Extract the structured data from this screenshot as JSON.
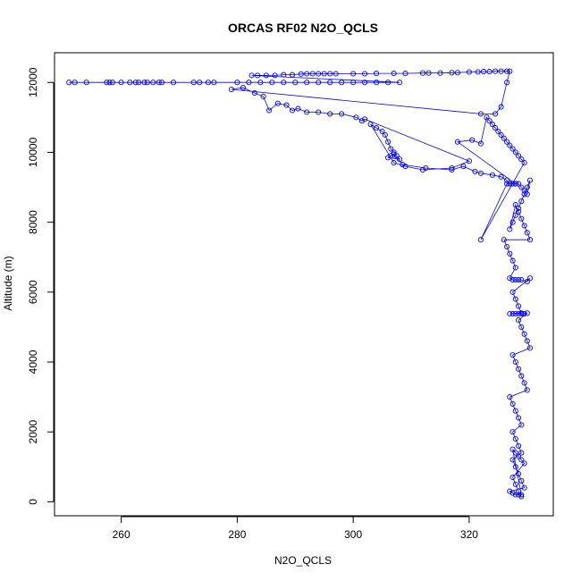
{
  "chart_data": {
    "type": "scatter",
    "title": "ORCAS RF02 N2O_QCLS",
    "xlabel": "N2O_QCLS",
    "ylabel": "Altitude (m)",
    "xlim": [
      248.5,
      334.5
    ],
    "ylim": [
      -400,
      12850
    ],
    "xticks": [
      260,
      280,
      300,
      320
    ],
    "yticks": [
      0,
      2000,
      4000,
      6000,
      8000,
      10000,
      12000
    ],
    "grid": false,
    "legend": "none",
    "colors": {
      "series": "#0000ff",
      "axis": "#000000",
      "background": "#ffffff"
    },
    "series": [
      {
        "style": "points-and-lines",
        "x": [
          251.0,
          252.0,
          254.0,
          257.5,
          258.0,
          258.5,
          260.0,
          261.5,
          262.5,
          263.0,
          264.0,
          264.5,
          265.5,
          266.5,
          267.0,
          269.0,
          272.5,
          273.5,
          275.0,
          276.0,
          280.0,
          282.0,
          284.0,
          286.0,
          288.0,
          290.0,
          292.0,
          294.0,
          296.0,
          298.0,
          300.0,
          302.0,
          304.0,
          306.0,
          308.0,
          282.5,
          283.5,
          285.0,
          286.5,
          288.0,
          289.5,
          291.0,
          292.0,
          293.0,
          294.0,
          295.0,
          296.0,
          297.0,
          300.0,
          302.0,
          304.0,
          307.0,
          309.0,
          312.0,
          313.0,
          315.0,
          317.0,
          318.0,
          320.0,
          321.5,
          322.5,
          323.5,
          324.5,
          325.5,
          326.5,
          327.0,
          326.5,
          325.5,
          324.5,
          322.0,
          279.0,
          281.0,
          283.0,
          284.5,
          285.5,
          287.0,
          288.5,
          289.5,
          290.5,
          292.0,
          294.0,
          296.0,
          298.0,
          300.5,
          301.5,
          302.0,
          320.0,
          317.0,
          312.0,
          309.0,
          307.0,
          303.0,
          304.0,
          305.0,
          305.5,
          306.0,
          306.5,
          307.0,
          307.5,
          308.0,
          306.0,
          306.5,
          307.0,
          308.5,
          312.5,
          317.0,
          319.0,
          321.0,
          322.0,
          324.0,
          325.5,
          326.5,
          327.0,
          327.5,
          328.0,
          318.0,
          320.5,
          322.0,
          323.0,
          323.5,
          324.0,
          324.5,
          325.0,
          325.5,
          326.0,
          326.5,
          327.0,
          327.5,
          328.0,
          328.5,
          329.0,
          329.5,
          322.0,
          326.5,
          327.0,
          327.5,
          328.0,
          328.5,
          329.0,
          329.5,
          330.0,
          330.5,
          330.0,
          329.5,
          329.0,
          328.5,
          328.0,
          327.5,
          327.0,
          328.0,
          328.5,
          329.0,
          329.5,
          330.0,
          330.5,
          326.0,
          326.5,
          327.0,
          327.5,
          328.0,
          327.0,
          327.5,
          328.0,
          328.5,
          329.0,
          330.0,
          330.5,
          327.5,
          328.0,
          328.5,
          329.0,
          327.0,
          327.5,
          328.0,
          328.5,
          329.0,
          329.5,
          330.0,
          328.5,
          329.0,
          329.5,
          330.0,
          330.5,
          327.5,
          328.0,
          328.5,
          329.0,
          329.5,
          330.0,
          327.0,
          327.5,
          328.0,
          328.5,
          329.0,
          327.5,
          328.0,
          328.5,
          329.0,
          327.5,
          328.0,
          328.5,
          329.0,
          329.5,
          327.0,
          327.5,
          328.0,
          328.5,
          329.0,
          327.5,
          328.0,
          328.5,
          329.0,
          329.5,
          327.5,
          328.0,
          328.5,
          329.0
        ],
        "y": [
          12000,
          12000,
          12000,
          12000,
          12000,
          12000,
          12000,
          12000,
          12000,
          12000,
          12000,
          12000,
          12000,
          12000,
          12000,
          12000,
          12000,
          12000,
          12000,
          12000,
          12000,
          12000,
          12000,
          12000,
          12000,
          12000,
          12000,
          12000,
          12000,
          12000,
          12000,
          12000,
          12000,
          12000,
          12000,
          12200,
          12200,
          12200,
          12200,
          12220,
          12220,
          12240,
          12250,
          12250,
          12250,
          12250,
          12250,
          12250,
          12250,
          12250,
          12260,
          12260,
          12260,
          12270,
          12270,
          12270,
          12280,
          12280,
          12300,
          12300,
          12310,
          12310,
          12320,
          12320,
          12320,
          12320,
          12000,
          11300,
          11100,
          11100,
          11800,
          11850,
          11700,
          11600,
          11200,
          11400,
          11350,
          11200,
          11250,
          11150,
          11150,
          11100,
          11100,
          11000,
          10900,
          10950,
          9750,
          9550,
          9500,
          9600,
          9700,
          10800,
          10700,
          10600,
          10500,
          10300,
          10100,
          10000,
          9900,
          9800,
          9850,
          9900,
          9950,
          9650,
          9550,
          9500,
          9600,
          9450,
          9400,
          9350,
          9300,
          9200,
          9100,
          9100,
          9100,
          10300,
          10350,
          10250,
          11000,
          10900,
          10800,
          10700,
          10600,
          10500,
          10400,
          10300,
          10200,
          10100,
          10000,
          9900,
          9800,
          9700,
          7500,
          9100,
          9100,
          9100,
          9100,
          9100,
          9000,
          8900,
          8800,
          9200,
          9000,
          8800,
          8600,
          8400,
          8200,
          8000,
          7800,
          8500,
          8300,
          8100,
          7900,
          7700,
          7500,
          7500,
          7300,
          7100,
          6900,
          6700,
          6400,
          6350,
          6350,
          6350,
          6350,
          6300,
          6400,
          6000,
          5800,
          5600,
          5400,
          5380,
          5380,
          5380,
          5380,
          5380,
          5380,
          5400,
          5200,
          5000,
          4800,
          4600,
          4400,
          4200,
          4000,
          3800,
          3600,
          3400,
          3200,
          3000,
          2800,
          2600,
          2400,
          2200,
          2000,
          1800,
          1600,
          1400,
          1200,
          1000,
          800,
          600,
          400,
          300,
          250,
          200,
          200,
          200,
          1500,
          1400,
          1300,
          1200,
          1100,
          700,
          500,
          300,
          150
        ]
      }
    ]
  }
}
